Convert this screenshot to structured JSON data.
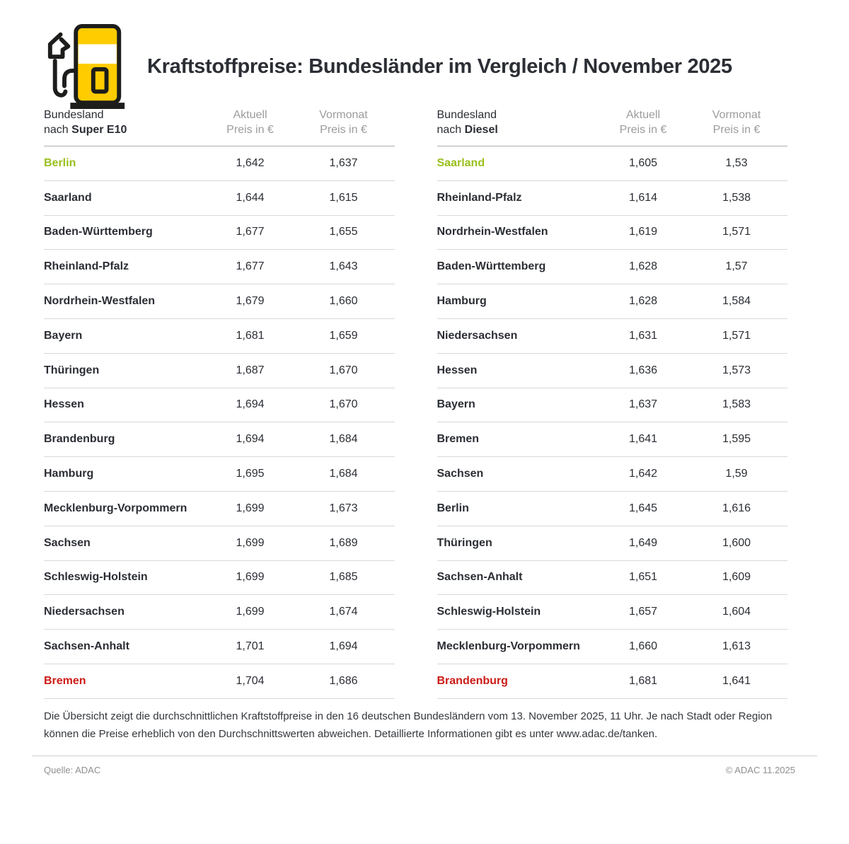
{
  "title": "Kraftstoffpreise: Bundesländer im Vergleich / November 2025",
  "colors": {
    "text": "#2B2E34",
    "muted": "#9C9C9C",
    "green": "#99BF1C",
    "red": "#CB1B17",
    "divider": "#D8D8D8",
    "header_divider": "#ADAFB1",
    "pump_yellow": "#FFCC00",
    "pump_outline": "#1D1D1B"
  },
  "chart_data": [
    {
      "type": "table",
      "title": "Bundesland nach Super E10",
      "header": {
        "name_line1": "Bundesland",
        "name_prefix": "nach ",
        "fuel": "Super E10",
        "col_aktuell_line1": "Aktuell",
        "col_aktuell_line2": "Preis in €",
        "col_vormonat_line1": "Vormonat",
        "col_vormonat_line2": "Preis in €"
      },
      "rows": [
        {
          "name": "Berlin",
          "aktuell": "1,642",
          "vormonat": "1,637",
          "highlight": "green"
        },
        {
          "name": "Saarland",
          "aktuell": "1,644",
          "vormonat": "1,615"
        },
        {
          "name": "Baden-Württemberg",
          "aktuell": "1,677",
          "vormonat": "1,655"
        },
        {
          "name": "Rheinland-Pfalz",
          "aktuell": "1,677",
          "vormonat": "1,643"
        },
        {
          "name": "Nordrhein-Westfalen",
          "aktuell": "1,679",
          "vormonat": "1,660"
        },
        {
          "name": "Bayern",
          "aktuell": "1,681",
          "vormonat": "1,659"
        },
        {
          "name": "Thüringen",
          "aktuell": "1,687",
          "vormonat": "1,670"
        },
        {
          "name": "Hessen",
          "aktuell": "1,694",
          "vormonat": "1,670"
        },
        {
          "name": "Brandenburg",
          "aktuell": "1,694",
          "vormonat": "1,684"
        },
        {
          "name": "Hamburg",
          "aktuell": "1,695",
          "vormonat": "1,684"
        },
        {
          "name": "Mecklenburg-Vorpommern",
          "aktuell": "1,699",
          "vormonat": "1,673"
        },
        {
          "name": "Sachsen",
          "aktuell": "1,699",
          "vormonat": "1,689"
        },
        {
          "name": "Schleswig-Holstein",
          "aktuell": "1,699",
          "vormonat": "1,685"
        },
        {
          "name": "Niedersachsen",
          "aktuell": "1,699",
          "vormonat": "1,674"
        },
        {
          "name": "Sachsen-Anhalt",
          "aktuell": "1,701",
          "vormonat": "1,694"
        },
        {
          "name": "Bremen",
          "aktuell": "1,704",
          "vormonat": "1,686",
          "highlight": "red"
        }
      ]
    },
    {
      "type": "table",
      "title": "Bundesland nach Diesel",
      "header": {
        "name_line1": "Bundesland",
        "name_prefix": "nach ",
        "fuel": "Diesel",
        "col_aktuell_line1": "Aktuell",
        "col_aktuell_line2": "Preis in €",
        "col_vormonat_line1": "Vormonat",
        "col_vormonat_line2": "Preis in €"
      },
      "rows": [
        {
          "name": "Saarland",
          "aktuell": "1,605",
          "vormonat": "1,53",
          "highlight": "green"
        },
        {
          "name": "Rheinland-Pfalz",
          "aktuell": "1,614",
          "vormonat": "1,538"
        },
        {
          "name": "Nordrhein-Westfalen",
          "aktuell": "1,619",
          "vormonat": "1,571"
        },
        {
          "name": "Baden-Württemberg",
          "aktuell": "1,628",
          "vormonat": "1,57"
        },
        {
          "name": "Hamburg",
          "aktuell": "1,628",
          "vormonat": "1,584"
        },
        {
          "name": "Niedersachsen",
          "aktuell": "1,631",
          "vormonat": "1,571"
        },
        {
          "name": "Hessen",
          "aktuell": "1,636",
          "vormonat": "1,573"
        },
        {
          "name": "Bayern",
          "aktuell": "1,637",
          "vormonat": "1,583"
        },
        {
          "name": "Bremen",
          "aktuell": "1,641",
          "vormonat": "1,595"
        },
        {
          "name": "Sachsen",
          "aktuell": "1,642",
          "vormonat": "1,59"
        },
        {
          "name": "Berlin",
          "aktuell": "1,645",
          "vormonat": "1,616"
        },
        {
          "name": "Thüringen",
          "aktuell": "1,649",
          "vormonat": "1,600"
        },
        {
          "name": "Sachsen-Anhalt",
          "aktuell": "1,651",
          "vormonat": "1,609"
        },
        {
          "name": "Schleswig-Holstein",
          "aktuell": "1,657",
          "vormonat": "1,604"
        },
        {
          "name": "Mecklenburg-Vorpommern",
          "aktuell": "1,660",
          "vormonat": "1,613"
        },
        {
          "name": "Brandenburg",
          "aktuell": "1,681",
          "vormonat": "1,641",
          "highlight": "red"
        }
      ]
    }
  ],
  "footnote": "Die Übersicht zeigt die durchschnittlichen Kraftstoffpreise in den 16 deutschen Bundesländern vom 13. November 2025, 11 Uhr. Je nach Stadt oder Region können die Preise erheblich von den Durchschnittswerten abweichen. Detaillierte Informationen gibt es unter www.adac.de/tanken.",
  "footer": {
    "source": "Quelle: ADAC",
    "copyright": "© ADAC 11.2025"
  }
}
